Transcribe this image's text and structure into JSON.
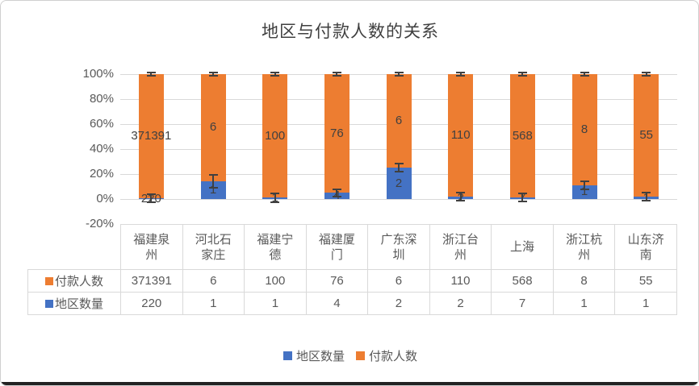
{
  "title": "地区与付款人数的关系",
  "colors": {
    "orange": "#ED7D31",
    "blue": "#4472C4",
    "grid": "#D9D9D9",
    "axis_text": "#595959",
    "data_label": "#404040",
    "error_bar": "#404040",
    "frame_border": "#CFCFCF"
  },
  "y_axis": {
    "ticks": [
      "100%",
      "80%",
      "60%",
      "40%",
      "20%",
      "0%",
      "-20%"
    ]
  },
  "legend": [
    {
      "label": "地区数量",
      "color": "#4472C4"
    },
    {
      "label": "付款人数",
      "color": "#ED7D31"
    }
  ],
  "chart_data": {
    "type": "bar",
    "subtype": "100%-stacked-column with error bars and data table",
    "title": "地区与付款人数的关系",
    "categories": [
      "福建泉州",
      "河北石家庄",
      "福建宁德",
      "福建厦门",
      "广东深圳",
      "浙江台州",
      "上海",
      "浙江杭州",
      "山东济南"
    ],
    "series": [
      {
        "name": "地区数量",
        "color": "#4472C4",
        "values": [
          220,
          1,
          1,
          4,
          2,
          2,
          7,
          1,
          1
        ],
        "error_pct": [
          4,
          6,
          4,
          3.5,
          4,
          4,
          4,
          4,
          4
        ]
      },
      {
        "name": "付款人数",
        "color": "#ED7D31",
        "values": [
          371391,
          6,
          100,
          76,
          6,
          110,
          568,
          8,
          55
        ],
        "error_pct": [
          2,
          2,
          2,
          2,
          2,
          2,
          2,
          2,
          2
        ]
      }
    ],
    "ylabel": "",
    "xlabel": "",
    "ylim": [
      "-20%",
      "100%"
    ],
    "grid": true,
    "legend_position": "bottom",
    "data_table_shown": true,
    "table_row_order": [
      "付款人数",
      "地区数量"
    ]
  }
}
